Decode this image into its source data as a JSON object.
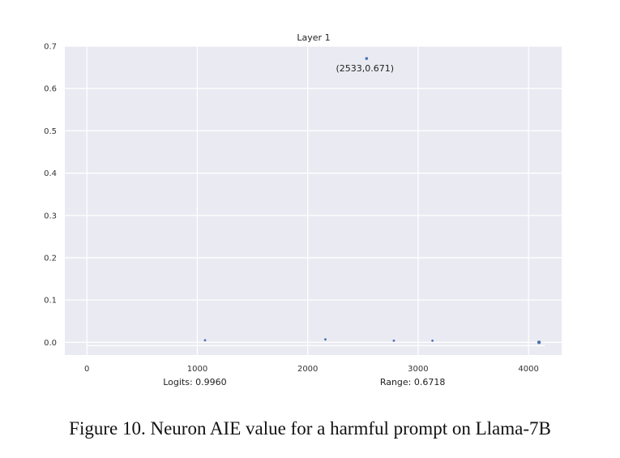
{
  "chart_data": {
    "type": "scatter",
    "title": "Layer 1",
    "xlim": [
      -200,
      4300
    ],
    "ylim": [
      -0.03,
      0.7
    ],
    "x_ticks": [
      0,
      1000,
      2000,
      3000,
      4000
    ],
    "y_ticks": [
      0.0,
      0.1,
      0.2,
      0.3,
      0.4,
      0.5,
      0.6,
      0.7
    ],
    "y_tick_labels": [
      "0.0",
      "0.1",
      "0.2",
      "0.3",
      "0.4",
      "0.5",
      "0.6",
      "0.7"
    ],
    "grid": true,
    "series": [
      {
        "color": "#4c72b0",
        "points": [
          {
            "x": 1070,
            "y": 0.005
          },
          {
            "x": 2160,
            "y": 0.007
          },
          {
            "x": 2533,
            "y": 0.671
          },
          {
            "x": 2780,
            "y": 0.004
          },
          {
            "x": 3130,
            "y": 0.004
          },
          {
            "x": 4095,
            "y": 0.0
          }
        ]
      }
    ],
    "annotations": [
      {
        "text": "(2533,0.671)",
        "x": 2533,
        "y": 0.671
      }
    ],
    "bottom_labels": {
      "left": "Logits: 0.9960",
      "right": "Range: 0.6718"
    }
  },
  "caption": "Figure 10. Neuron AIE value for a harmful prompt on Llama-7B"
}
